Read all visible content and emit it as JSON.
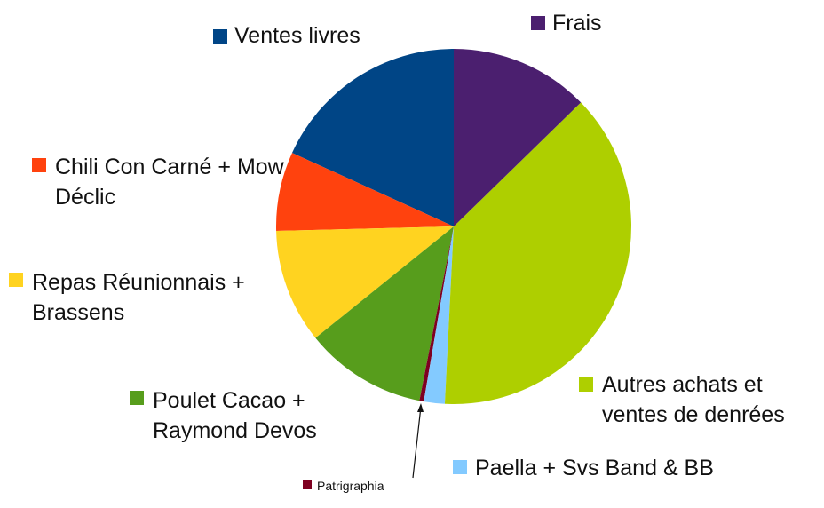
{
  "chart_data": {
    "type": "pie",
    "categories": [
      "Frais",
      "Autres achats et ventes de denrées",
      "Paella + Svs Band & BB",
      "Patrigraphia",
      "Poulet Cacao + Raymond Devos",
      "Repas Réunionnais + Brassens",
      "Chili Con Carné + Mow Déclic",
      "Ventes livres"
    ],
    "values": [
      12.7,
      38.1,
      1.9,
      0.4,
      11.1,
      10.4,
      7.2,
      18.2
    ],
    "colors": [
      "#4b1f6f",
      "#aecf00",
      "#83caff",
      "#7e0021",
      "#579d1c",
      "#ffd320",
      "#ff420e",
      "#004586"
    ]
  }
}
